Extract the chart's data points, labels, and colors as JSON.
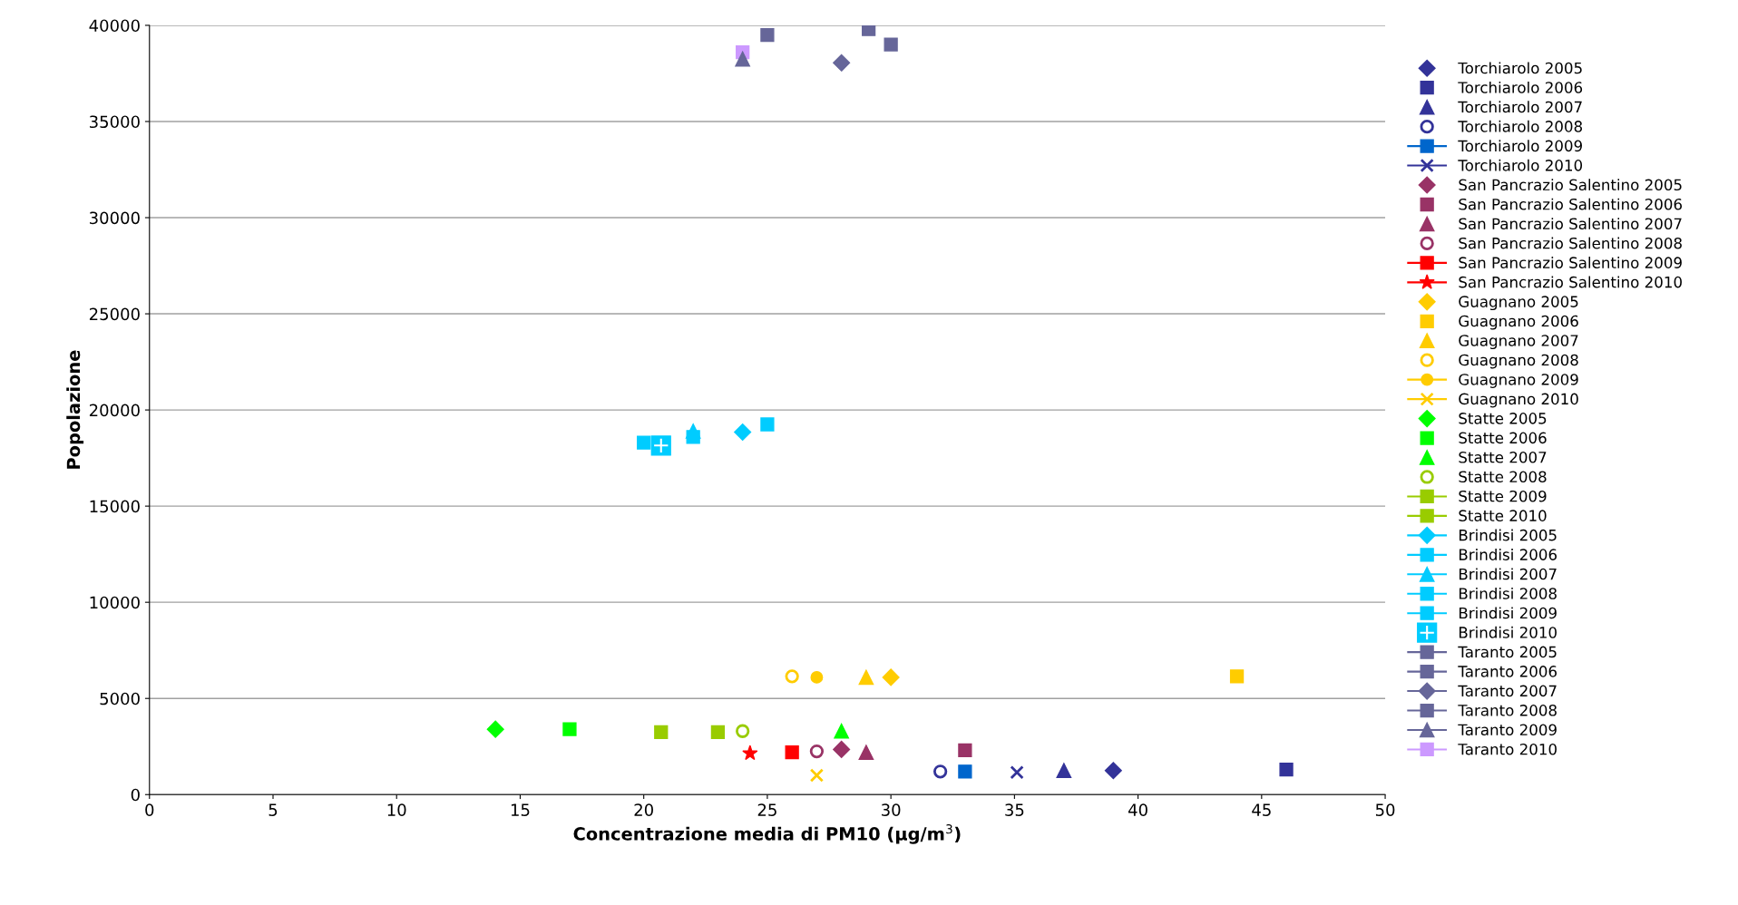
{
  "chart_data": {
    "type": "scatter",
    "xlabel": "Concentrazione media di PM10 (μg/m$^{3}$)",
    "ylabel": "Popolazione",
    "xlim": [
      0,
      50
    ],
    "xticks": [
      0,
      5,
      10,
      15,
      20,
      25,
      30,
      35,
      40,
      45,
      50
    ],
    "ylim": [
      0,
      40000
    ],
    "yticks": [
      0,
      5000,
      10000,
      15000,
      20000,
      25000,
      30000,
      35000,
      40000
    ],
    "grid": "y",
    "legend": "right",
    "series": [
      {
        "name": "Torchiarolo 2005",
        "color": "#333399",
        "marker": "diamond",
        "x": [
          39
        ],
        "values": [
          1250
        ]
      },
      {
        "name": "Torchiarolo 2006",
        "color": "#333399",
        "marker": "square",
        "x": [
          46
        ],
        "values": [
          1300
        ]
      },
      {
        "name": "Torchiarolo 2007",
        "color": "#333399",
        "marker": "triangle",
        "x": [
          37
        ],
        "values": [
          1250
        ]
      },
      {
        "name": "Torchiarolo 2008",
        "color": "#333399",
        "marker": "circle",
        "x": [
          32
        ],
        "values": [
          1200
        ]
      },
      {
        "name": "Torchiarolo 2009",
        "color": "#0066cc",
        "marker": "square",
        "line_style": "solid",
        "x": [
          33
        ],
        "values": [
          1200
        ]
      },
      {
        "name": "Torchiarolo 2010",
        "color": "#333399",
        "marker": "cross",
        "line_style": "solid",
        "x": [
          35.1
        ],
        "values": [
          1150
        ]
      },
      {
        "name": "San Pancrazio Salentino 2005",
        "color": "#993366",
        "marker": "diamond",
        "x": [
          28
        ],
        "values": [
          2350
        ]
      },
      {
        "name": "San Pancrazio Salentino 2006",
        "color": "#993366",
        "marker": "square",
        "x": [
          33
        ],
        "values": [
          2300
        ]
      },
      {
        "name": "San Pancrazio Salentino 2007",
        "color": "#993366",
        "marker": "triangle",
        "x": [
          29
        ],
        "values": [
          2200
        ]
      },
      {
        "name": "San Pancrazio Salentino 2008",
        "color": "#993366",
        "marker": "circle",
        "x": [
          27
        ],
        "values": [
          2250
        ]
      },
      {
        "name": "San Pancrazio Salentino 2009",
        "color": "#ff0000",
        "marker": "square",
        "line_style": "solid",
        "x": [
          26
        ],
        "values": [
          2200
        ]
      },
      {
        "name": "San Pancrazio Salentino 2010",
        "color": "#ff0000",
        "marker": "star",
        "line_style": "solid",
        "x": [
          24.3
        ],
        "values": [
          2150
        ]
      },
      {
        "name": "Guagnano 2005",
        "color": "#ffcc00",
        "marker": "diamond",
        "x": [
          30
        ],
        "values": [
          6100
        ]
      },
      {
        "name": "Guagnano 2006",
        "color": "#ffcc00",
        "marker": "square",
        "x": [
          44
        ],
        "values": [
          6150
        ]
      },
      {
        "name": "Guagnano 2007",
        "color": "#ffcc00",
        "marker": "triangle",
        "x": [
          29
        ],
        "values": [
          6100
        ]
      },
      {
        "name": "Guagnano 2008",
        "color": "#ffcc00",
        "marker": "circle",
        "x": [
          26
        ],
        "values": [
          6150
        ]
      },
      {
        "name": "Guagnano 2009",
        "color": "#ffcc00",
        "marker": "circle",
        "line_style": "solid",
        "x": [
          27
        ],
        "values": [
          6100
        ]
      },
      {
        "name": "Guagnano 2010",
        "color": "#ffcc00",
        "marker": "cross",
        "line_style": "solid",
        "x": [
          27
        ],
        "values": [
          1000
        ]
      },
      {
        "name": "Statte 2005",
        "color": "#00ff00",
        "marker": "diamond",
        "x": [
          14
        ],
        "values": [
          3400
        ]
      },
      {
        "name": "Statte 2006",
        "color": "#00ff00",
        "marker": "square",
        "x": [
          17
        ],
        "values": [
          3400
        ]
      },
      {
        "name": "Statte 2007",
        "color": "#00ff00",
        "marker": "triangle",
        "x": [
          28
        ],
        "values": [
          3300
        ]
      },
      {
        "name": "Statte 2008",
        "color": "#99cc00",
        "marker": "circle",
        "x": [
          24
        ],
        "values": [
          3300
        ]
      },
      {
        "name": "Statte 2009",
        "color": "#99cc00",
        "marker": "square",
        "line_style": "solid",
        "x": [
          23
        ],
        "values": [
          3250
        ]
      },
      {
        "name": "Statte 2010",
        "color": "#99cc00",
        "marker": "square",
        "line_style": "solid",
        "x": [
          20.7
        ],
        "values": [
          3250
        ]
      },
      {
        "name": "Brindisi 2005",
        "color": "#00ccff",
        "marker": "diamond",
        "line_style": "solid",
        "x": [
          24
        ],
        "values": [
          18850
        ]
      },
      {
        "name": "Brindisi 2006",
        "color": "#00ccff",
        "marker": "square",
        "line_style": "solid",
        "x": [
          25
        ],
        "values": [
          19250
        ]
      },
      {
        "name": "Brindisi 2007",
        "color": "#00ccff",
        "marker": "triangle",
        "line_style": "solid",
        "x": [
          22
        ],
        "values": [
          18900
        ]
      },
      {
        "name": "Brindisi 2008",
        "color": "#00ccff",
        "marker": "square",
        "line_style": "solid",
        "x": [
          22
        ],
        "values": [
          18600
        ]
      },
      {
        "name": "Brindisi 2009",
        "color": "#00ccff",
        "marker": "square",
        "line_style": "solid",
        "x": [
          20
        ],
        "values": [
          18300
        ]
      },
      {
        "name": "Brindisi 2010",
        "color": "#00ccff",
        "marker": "square",
        "x": [
          20.7
        ],
        "values": [
          18150
        ]
      },
      {
        "name": "Taranto 2005",
        "color": "#666699",
        "marker": "square",
        "line_style": "solid",
        "x": [
          29.1
        ],
        "values": [
          39800
        ]
      },
      {
        "name": "Taranto 2006",
        "color": "#666699",
        "marker": "square",
        "line_style": "solid",
        "x": [
          30
        ],
        "values": [
          39000
        ]
      },
      {
        "name": "Taranto 2007",
        "color": "#666699",
        "marker": "diamond",
        "line_style": "solid",
        "x": [
          28
        ],
        "values": [
          38050
        ]
      },
      {
        "name": "Taranto 2008",
        "color": "#666699",
        "marker": "square",
        "line_style": "solid",
        "x": [
          25
        ],
        "values": [
          39500
        ]
      },
      {
        "name": "Taranto 2009",
        "color": "#666699",
        "marker": "triangle",
        "line_style": "solid",
        "x": [
          24
        ],
        "values": [
          38250
        ]
      },
      {
        "name": "Taranto 2010",
        "color": "#cc99ff",
        "marker": "square",
        "line_style": "solid",
        "x": [
          24
        ],
        "values": [
          38600
        ]
      }
    ]
  }
}
